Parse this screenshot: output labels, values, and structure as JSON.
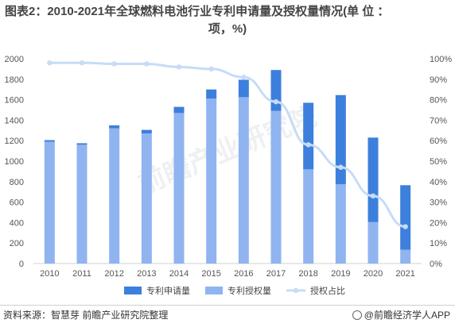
{
  "title_line1": "图表2：2010-2021年全球燃料电池行业专利申请量及授权量情况(单 位 ：",
  "title_line2": "项，%)",
  "chart_data": {
    "type": "bar",
    "stacked": true,
    "categories": [
      "2010",
      "2011",
      "2012",
      "2013",
      "2014",
      "2015",
      "2016",
      "2017",
      "2018",
      "2019",
      "2020",
      "2021"
    ],
    "series": [
      {
        "name": "专利授权量",
        "axis": "left",
        "color": "#8fb4f0",
        "values": [
          1190,
          1160,
          1320,
          1270,
          1470,
          1610,
          1625,
          1490,
          920,
          775,
          405,
          135
        ]
      },
      {
        "name": "专利申请量",
        "axis": "left",
        "color": "#3d7fdc",
        "values": [
          15,
          15,
          30,
          35,
          60,
          90,
          170,
          400,
          650,
          870,
          825,
          630
        ]
      },
      {
        "name": "授权占比",
        "axis": "right",
        "type": "line",
        "color": "#c6dcf7",
        "values": [
          98,
          98,
          97.5,
          97.5,
          96,
          95,
          91,
          79,
          58,
          47,
          33,
          18
        ]
      }
    ],
    "legend_order": [
      "专利申请量",
      "专利授权量",
      "授权占比"
    ],
    "y_left": {
      "min": 0,
      "max": 2000,
      "step": 200
    },
    "y_right": {
      "min": 0,
      "max": 100,
      "step": 10,
      "unit": "%"
    },
    "legend_position": "bottom",
    "grid": false
  },
  "watermark": "前瞻产业研究院",
  "footer": {
    "source": "资料来源：智慧芽 前瞻产业研究院整理",
    "brand": "@前瞻经济学人APP"
  }
}
